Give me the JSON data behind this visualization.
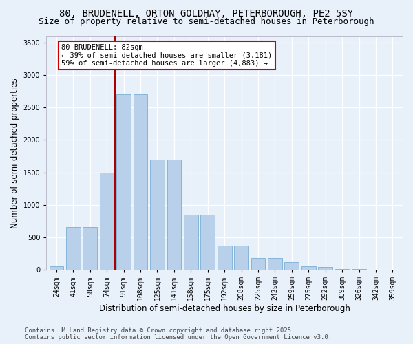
{
  "title_line1": "80, BRUDENELL, ORTON GOLDHAY, PETERBOROUGH, PE2 5SY",
  "title_line2": "Size of property relative to semi-detached houses in Peterborough",
  "xlabel": "Distribution of semi-detached houses by size in Peterborough",
  "ylabel": "Number of semi-detached properties",
  "categories": [
    "24sqm",
    "41sqm",
    "58sqm",
    "74sqm",
    "91sqm",
    "108sqm",
    "125sqm",
    "141sqm",
    "158sqm",
    "175sqm",
    "192sqm",
    "208sqm",
    "225sqm",
    "242sqm",
    "259sqm",
    "275sqm",
    "292sqm",
    "309sqm",
    "326sqm",
    "342sqm",
    "359sqm"
  ],
  "values": [
    55,
    660,
    660,
    1500,
    2700,
    2700,
    1700,
    1700,
    850,
    850,
    370,
    370,
    185,
    185,
    115,
    60,
    40,
    15,
    10,
    5,
    2
  ],
  "bar_color": "#b8d0ea",
  "bar_edge_color": "#7aafd4",
  "background_color": "#e8f0fa",
  "grid_color": "#ffffff",
  "vline_color": "#aa0000",
  "annotation_title": "80 BRUDENELL: 82sqm",
  "annotation_line1": "← 39% of semi-detached houses are smaller (3,181)",
  "annotation_line2": "59% of semi-detached houses are larger (4,883) →",
  "annotation_box_color": "#ffffff",
  "annotation_box_edge": "#cc0000",
  "ylim": [
    0,
    3600
  ],
  "yticks": [
    0,
    500,
    1000,
    1500,
    2000,
    2500,
    3000,
    3500
  ],
  "footer_line1": "Contains HM Land Registry data © Crown copyright and database right 2025.",
  "footer_line2": "Contains public sector information licensed under the Open Government Licence v3.0.",
  "title_fontsize": 10,
  "subtitle_fontsize": 9,
  "axis_label_fontsize": 8.5,
  "tick_fontsize": 7,
  "footer_fontsize": 6.5,
  "annot_fontsize": 7.5
}
